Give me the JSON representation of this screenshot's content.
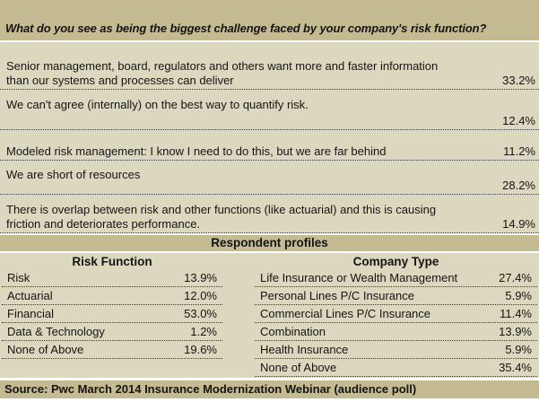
{
  "title": "What do you see as being the biggest challenge faced by your company's risk function?",
  "challenges": [
    {
      "lines": [
        "Senior management, board, regulators and others want more and faster information",
        "than our systems and processes can deliver"
      ],
      "pct": "33.2%"
    },
    {
      "lines": [
        "We can't agree (internally) on the best way to quantify risk."
      ],
      "pct": "12.4%"
    },
    {
      "lines": [
        "Modeled risk management: I know I need to do this, but we are far behind"
      ],
      "pct": "11.2%"
    },
    {
      "lines": [
        "We are short of resources"
      ],
      "pct": "28.2%"
    },
    {
      "lines": [
        "There is overlap between risk and other functions (like actuarial) and this is causing",
        "friction and deteriorates performance."
      ],
      "pct": "14.9%"
    }
  ],
  "profiles": {
    "section_title": "Respondent profiles",
    "risk_function": {
      "header": "Risk Function",
      "rows": [
        {
          "label": "Risk",
          "value": "13.9%"
        },
        {
          "label": "Actuarial",
          "value": "12.0%"
        },
        {
          "label": "Financial",
          "value": "53.0%"
        },
        {
          "label": "Data & Technology",
          "value": "1.2%"
        },
        {
          "label": "None of Above",
          "value": "19.6%"
        }
      ]
    },
    "company_type": {
      "header": "Company Type",
      "rows": [
        {
          "label": "Life Insurance or Wealth Management",
          "value": "27.4%"
        },
        {
          "label": "Personal Lines P/C Insurance",
          "value": "5.9%"
        },
        {
          "label": "Commercial Lines P/C Insurance",
          "value": "11.4%"
        },
        {
          "label": "Combination",
          "value": "13.9%"
        },
        {
          "label": "Health Insurance",
          "value": "5.9%"
        },
        {
          "label": "None of Above",
          "value": "35.4%"
        }
      ]
    }
  },
  "source": "Source: Pwc March 2014 Insurance Modernization Webinar (audience poll)",
  "colors": {
    "band": "#c4bb92",
    "body": "#dcd8bf",
    "ink": "#141414"
  },
  "chart_data": [
    {
      "type": "table",
      "title": "What do you see as being the biggest challenge faced by your company's risk function?",
      "categories": [
        "Senior management, board, regulators and others want more and faster information than our systems and processes can deliver",
        "We can't agree (internally) on the best way to quantify risk.",
        "Modeled risk management: I know I need to do this, but we are far behind",
        "We are short of resources",
        "There is overlap between risk and other functions (like actuarial) and this is causing friction and deteriorates performance."
      ],
      "values": [
        33.2,
        12.4,
        11.2,
        28.2,
        14.9
      ],
      "unit": "%"
    },
    {
      "type": "table",
      "title": "Risk Function",
      "categories": [
        "Risk",
        "Actuarial",
        "Financial",
        "Data & Technology",
        "None of Above"
      ],
      "values": [
        13.9,
        12.0,
        53.0,
        1.2,
        19.6
      ],
      "unit": "%"
    },
    {
      "type": "table",
      "title": "Company Type",
      "categories": [
        "Life Insurance or Wealth Management",
        "Personal Lines P/C Insurance",
        "Commercial Lines P/C Insurance",
        "Combination",
        "Health Insurance",
        "None of Above"
      ],
      "values": [
        27.4,
        5.9,
        11.4,
        13.9,
        5.9,
        35.4
      ],
      "unit": "%"
    }
  ]
}
